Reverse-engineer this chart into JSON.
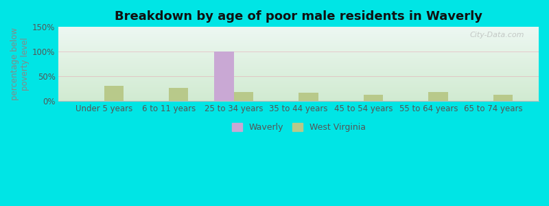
{
  "title": "Breakdown by age of poor male residents in Waverly",
  "categories": [
    "Under 5 years",
    "6 to 11 years",
    "25 to 34 years",
    "35 to 44 years",
    "45 to 54 years",
    "55 to 64 years",
    "65 to 74 years"
  ],
  "waverly_values": [
    0,
    0,
    100,
    0,
    0,
    0,
    0
  ],
  "wv_values": [
    30,
    27,
    18,
    17,
    13,
    18,
    13
  ],
  "waverly_color": "#c9a8d4",
  "wv_color": "#b8c98a",
  "ylim": [
    0,
    150
  ],
  "yticks": [
    0,
    50,
    100,
    150
  ],
  "ytick_labels": [
    "0%",
    "50%",
    "100%",
    "150%"
  ],
  "ylabel": "percentage below\npoverty level",
  "outer_background": "#00e5e5",
  "bar_width": 0.3,
  "title_fontsize": 13,
  "axis_fontsize": 8.5,
  "legend_fontsize": 9,
  "watermark": "City-Data.com"
}
